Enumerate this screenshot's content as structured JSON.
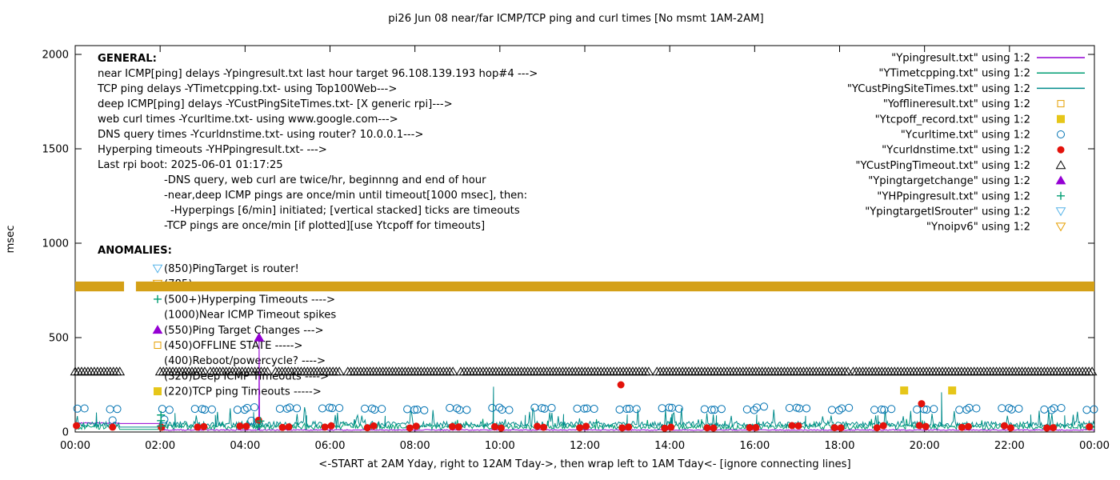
{
  "title": "pi26 Jun 08  near/far ICMP/TCP ping and curl times [No msmt 1AM-2AM]",
  "axes": {
    "ylabel": "msec",
    "xlabel": "<-START at 2AM Yday, right to 12AM Tday->, then wrap left to 1AM Tday<- [ignore connecting lines]",
    "yticks": [
      0,
      500,
      1000,
      1500,
      2000
    ],
    "xticks": [
      "00:00",
      "02:00",
      "04:00",
      "06:00",
      "08:00",
      "10:00",
      "12:00",
      "14:00",
      "16:00",
      "18:00",
      "20:00",
      "22:00",
      "00:00"
    ],
    "xlim": [
      0,
      24
    ],
    "ylim": [
      0,
      2000
    ],
    "grid": false
  },
  "legend": [
    {
      "label": "\"Ypingresult.txt\" using 1:2",
      "marker": "line",
      "color": "#9400d3"
    },
    {
      "label": "\"YTimetcpping.txt\" using 1:2",
      "marker": "line",
      "color": "#009e73"
    },
    {
      "label": "\"YCustPingSiteTimes.txt\" using 1:2",
      "marker": "line",
      "color": "#008b8b"
    },
    {
      "label": "\"Yofflineresult.txt\" using 1:2",
      "marker": "square-open",
      "color": "#e69f00"
    },
    {
      "label": "\"Ytcpoff_record.txt\" using 1:2",
      "marker": "square-filled",
      "color": "#e6c619"
    },
    {
      "label": "\"Ycurltime.txt\" using 1:2",
      "marker": "circle-open",
      "color": "#0072b2"
    },
    {
      "label": "\"Ycurldnstime.txt\" using 1:2",
      "marker": "circle-filled",
      "color": "#e3120b"
    },
    {
      "label": "\"YCustPingTimeout.txt\" using 1:2",
      "marker": "tri-up-open",
      "color": "#000000"
    },
    {
      "label": "\"Ypingtargetchange\" using 1:2",
      "marker": "tri-up-filled",
      "color": "#9400d3"
    },
    {
      "label": "\"YHPpingresult.txt\" using 1:2",
      "marker": "plus",
      "color": "#009e73"
    },
    {
      "label": "\"YpingtargetISrouter\" using 1:2",
      "marker": "tri-down-open",
      "color": "#56b4e9"
    },
    {
      "label": "\"Ynoipv6\" using 1:2",
      "marker": "tri-down-open",
      "color": "#e69f00"
    }
  ],
  "general": {
    "heading": "GENERAL:",
    "lines": [
      {
        "indent": 0,
        "text": "near ICMP[ping] delays -Ypingresult.txt last hour target 96.108.139.193 hop#4 --->"
      },
      {
        "indent": 0,
        "text": "TCP ping delays -YTimetcpping.txt- using Top100Web--->"
      },
      {
        "indent": 0,
        "text": "deep ICMP[ping] delays -YCustPingSiteTimes.txt- [X generic rpi]--->"
      },
      {
        "indent": 0,
        "text": "web curl times -Ycurltime.txt- using www.google.com--->"
      },
      {
        "indent": 0,
        "text": "DNS query times -Ycurldnstime.txt- using router? 10.0.0.1--->"
      },
      {
        "indent": 0,
        "text": "Hyperping timeouts -YHPpingresult.txt- --->"
      },
      {
        "indent": 0,
        "text": "Last rpi boot: 2025-06-01 01:17:25"
      },
      {
        "indent": 1,
        "text": "-DNS query, web curl are twice/hr, beginnng and end of hour"
      },
      {
        "indent": 1,
        "text": "-near,deep ICMP pings are once/min until timeout[1000 msec], then:"
      },
      {
        "indent": 2,
        "text": "-Hyperpings [6/min] initiated; [vertical stacked] ticks are timeouts"
      },
      {
        "indent": 1,
        "text": "-TCP pings are once/min [if plotted][use Ytcpoff for timeouts]"
      }
    ]
  },
  "anomalies": {
    "heading": "ANOMALIES:",
    "items": [
      {
        "marker": "tri-down-open",
        "color": "#56b4e9",
        "text": "(850)PingTarget is router!"
      },
      {
        "marker": "tri-down-open",
        "color": "#e69f00",
        "text": "(785)",
        "hidden_by_band": true
      },
      {
        "marker": "plus",
        "color": "#009e73",
        "text": "(500+)Hyperping Timeouts ---->"
      },
      {
        "marker": "",
        "color": "",
        "text": "(1000)Near ICMP Timeout spikes"
      },
      {
        "marker": "tri-up-filled",
        "color": "#9400d3",
        "text": "(550)Ping Target Changes --->"
      },
      {
        "marker": "square-open",
        "color": "#e69f00",
        "text": "(450)OFFLINE STATE ----->"
      },
      {
        "marker": "",
        "color": "",
        "text": "(400)Reboot/powercycle? ---->"
      },
      {
        "marker": "",
        "color": "",
        "text": "(320)Deep ICMP Timeouts ---->"
      },
      {
        "marker": "square-filled",
        "color": "#e6c619",
        "text": "(220)TCP ping Timeouts ----->"
      }
    ]
  },
  "chart_data": {
    "type": "line+scatter",
    "title": "pi26 Jun 08  near/far ICMP/TCP ping and curl times [No msmt 1AM-2AM]",
    "xlabel": "<-START at 2AM Yday, right to 12AM Tday->, then wrap left to 1AM Tday<- [ignore connecting lines]",
    "ylabel": "msec",
    "xlim": [
      0,
      24
    ],
    "ylim": [
      0,
      2000
    ],
    "no_measurement_gap_hours": [
      1.03,
      1.97
    ],
    "series": [
      {
        "name": "Ypingresult",
        "type": "line",
        "color": "#9400d3",
        "baseline": 8,
        "noise": 5,
        "levels": [
          [
            0,
            2,
            45
          ],
          [
            2,
            24,
            8
          ]
        ],
        "spikes": [
          [
            4.33,
            480
          ]
        ]
      },
      {
        "name": "YTimetcpping",
        "type": "line",
        "color": "#009e73",
        "baseline": 14,
        "noise": 26,
        "spike_prob": 0.03,
        "spike_add": [
          10,
          30
        ]
      },
      {
        "name": "YCustPingSiteTimes",
        "type": "line",
        "color": "#008b8b",
        "baseline": 26,
        "noise": 30,
        "spike_prob": 0.06,
        "spike_add": [
          25,
          55
        ],
        "spikes": [
          [
            0.5,
            95
          ],
          [
            2.35,
            100
          ],
          [
            3.3,
            90
          ],
          [
            4.2,
            105
          ],
          [
            5.45,
            88
          ],
          [
            7.3,
            85
          ],
          [
            9.85,
            240
          ],
          [
            10.6,
            90
          ],
          [
            11.5,
            95
          ],
          [
            13.0,
            92
          ],
          [
            14.05,
            95
          ],
          [
            15.1,
            88
          ],
          [
            16.05,
            92
          ],
          [
            17.2,
            85
          ],
          [
            18.9,
            88
          ],
          [
            19.9,
            150
          ],
          [
            20.4,
            210
          ],
          [
            22.5,
            92
          ],
          [
            23.3,
            88
          ]
        ]
      },
      {
        "name": "Yofflineresult",
        "type": "scatter",
        "marker": "square-open",
        "color": "#e69f00",
        "points": []
      },
      {
        "name": "Ytcpoff_record",
        "type": "scatter",
        "marker": "square-filled",
        "color": "#e6c619",
        "points": [
          [
            19.52,
            220
          ],
          [
            20.65,
            220
          ]
        ]
      },
      {
        "name": "Ycurltime",
        "type": "scatter",
        "marker": "circle-open",
        "color": "#0072b2",
        "gen": {
          "offsets": [
            0.05,
            0.82
          ],
          "skip_hours": [
            1
          ],
          "y_base": 123,
          "y_jitter": 14,
          "pair": true
        },
        "points": [
          [
            0.88,
            62
          ],
          [
            2.1,
            66
          ],
          [
            4.15,
            60
          ]
        ]
      },
      {
        "name": "Ycurldnstime",
        "type": "scatter",
        "marker": "circle-filled",
        "color": "#e3120b",
        "gen": {
          "offsets": [
            0.03,
            0.88
          ],
          "skip_hours": [
            1
          ],
          "y_base": 28,
          "y_jitter": 16,
          "pair": false
        },
        "points": [
          [
            12.85,
            250
          ],
          [
            19.93,
            150
          ],
          [
            4.32,
            62
          ]
        ]
      },
      {
        "name": "YCustPingTimeout",
        "type": "scatter",
        "marker": "tri-up-open",
        "color": "#000000",
        "row_y": 320,
        "step": 0.075,
        "segments": [
          [
            0,
            1.05
          ],
          [
            2.0,
            3.08
          ],
          [
            3.18,
            4.55
          ],
          [
            4.72,
            6.28
          ],
          [
            6.42,
            8.95
          ],
          [
            9.08,
            13.55
          ],
          [
            13.7,
            18.2
          ],
          [
            18.32,
            24
          ]
        ]
      },
      {
        "name": "Ypingtargetchange",
        "type": "scatter",
        "marker": "tri-up-filled",
        "color": "#9400d3",
        "points": [
          [
            4.33,
            500
          ]
        ]
      },
      {
        "name": "YHPpingresult",
        "type": "scatter",
        "marker": "plus",
        "color": "#009e73",
        "points": [
          [
            2.02,
            90
          ],
          [
            2.02,
            60
          ],
          [
            2.02,
            32
          ],
          [
            4.3,
            30
          ],
          [
            4.36,
            58
          ]
        ]
      },
      {
        "name": "YpingtargetISrouter",
        "type": "scatter",
        "marker": "tri-down-open",
        "color": "#56b4e9",
        "points": []
      },
      {
        "name": "Ynoipv6",
        "type": "band",
        "color": "#d4a017",
        "y_range": [
          745,
          797
        ],
        "x_segments": [
          [
            0,
            1.15
          ],
          [
            1.43,
            24
          ]
        ]
      }
    ]
  }
}
